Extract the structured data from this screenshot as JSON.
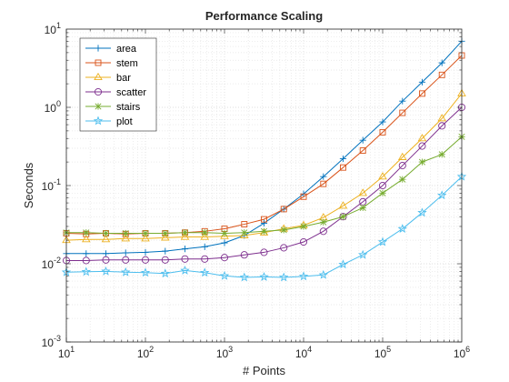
{
  "chart_data": {
    "type": "line",
    "title": "Performance Scaling",
    "xlabel": "# Points",
    "ylabel": "Seconds",
    "xscale": "log",
    "yscale": "log",
    "xlim": [
      10,
      1000000
    ],
    "ylim": [
      0.001,
      10
    ],
    "xticks": [
      10,
      100,
      1000,
      10000,
      100000,
      1000000
    ],
    "yticks": [
      0.001,
      0.01,
      0.1,
      1,
      10
    ],
    "xtick_labels": [
      {
        "base": "10",
        "exp": "1"
      },
      {
        "base": "10",
        "exp": "2"
      },
      {
        "base": "10",
        "exp": "3"
      },
      {
        "base": "10",
        "exp": "4"
      },
      {
        "base": "10",
        "exp": "5"
      },
      {
        "base": "10",
        "exp": "6"
      }
    ],
    "ytick_labels": [
      {
        "base": "10",
        "exp": "-3"
      },
      {
        "base": "10",
        "exp": "-2"
      },
      {
        "base": "10",
        "exp": "-1"
      },
      {
        "base": "10",
        "exp": "0"
      },
      {
        "base": "10",
        "exp": "1"
      }
    ],
    "grid": "major and minor dotted",
    "legend_position": "top-left",
    "x": [
      10,
      17.8,
      31.6,
      56.2,
      100,
      178,
      316,
      562,
      1000,
      1780,
      3160,
      5620,
      10000,
      17800,
      31600,
      56200,
      100000,
      178000,
      316000,
      562000,
      1000000
    ],
    "series": [
      {
        "name": "area",
        "color": "#0072BD",
        "marker": "plus",
        "values": [
          0.0135,
          0.0135,
          0.0135,
          0.0138,
          0.014,
          0.0145,
          0.0155,
          0.0165,
          0.0185,
          0.023,
          0.033,
          0.05,
          0.078,
          0.13,
          0.22,
          0.38,
          0.65,
          1.2,
          2.1,
          3.7,
          7.0
        ]
      },
      {
        "name": "stem",
        "color": "#D95319",
        "marker": "square",
        "values": [
          0.0245,
          0.024,
          0.0245,
          0.024,
          0.0245,
          0.0245,
          0.025,
          0.026,
          0.028,
          0.032,
          0.037,
          0.05,
          0.072,
          0.105,
          0.17,
          0.28,
          0.48,
          0.85,
          1.5,
          2.6,
          4.6
        ]
      },
      {
        "name": "bar",
        "color": "#EDB120",
        "marker": "triangle",
        "values": [
          0.02,
          0.0205,
          0.0205,
          0.021,
          0.021,
          0.0215,
          0.022,
          0.022,
          0.0225,
          0.023,
          0.025,
          0.028,
          0.031,
          0.039,
          0.055,
          0.08,
          0.13,
          0.23,
          0.4,
          0.72,
          1.5
        ]
      },
      {
        "name": "scatter",
        "color": "#7E2F8E",
        "marker": "circle",
        "values": [
          0.011,
          0.011,
          0.0112,
          0.0112,
          0.0112,
          0.0112,
          0.0115,
          0.0115,
          0.012,
          0.013,
          0.014,
          0.016,
          0.019,
          0.026,
          0.04,
          0.062,
          0.1,
          0.18,
          0.32,
          0.58,
          1.0
        ]
      },
      {
        "name": "stairs",
        "color": "#77AC30",
        "marker": "asterisk",
        "values": [
          0.025,
          0.025,
          0.0245,
          0.0245,
          0.0245,
          0.0245,
          0.025,
          0.025,
          0.0245,
          0.025,
          0.026,
          0.027,
          0.03,
          0.034,
          0.04,
          0.052,
          0.08,
          0.12,
          0.2,
          0.25,
          0.42
        ]
      },
      {
        "name": "plot",
        "color": "#4DBEEE",
        "marker": "star",
        "values": [
          0.0078,
          0.0079,
          0.008,
          0.0078,
          0.0077,
          0.0075,
          0.0082,
          0.0077,
          0.007,
          0.0067,
          0.0068,
          0.0067,
          0.0069,
          0.0072,
          0.0098,
          0.013,
          0.019,
          0.028,
          0.045,
          0.075,
          0.13
        ]
      }
    ]
  }
}
